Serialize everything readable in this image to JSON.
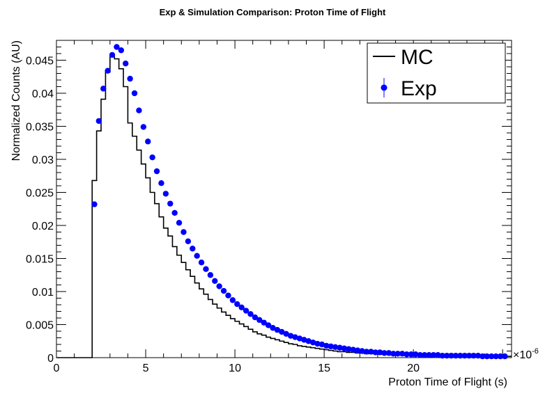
{
  "chart_data": {
    "type": "line",
    "title": "Exp & Simulation Comparison: Proton Time of Flight",
    "xlabel": "Proton Time of Flight (s)",
    "ylabel": "Normalized Counts (AU)",
    "x_exponent_label": "×10",
    "x_exponent_power": "-6",
    "xlim": [
      0,
      25.5
    ],
    "ylim": [
      0,
      0.048
    ],
    "x_ticks": [
      0,
      5,
      10,
      15,
      20
    ],
    "y_ticks": [
      "0",
      "0.005",
      "0.01",
      "0.015",
      "0.02",
      "0.025",
      "0.03",
      "0.035",
      "0.04",
      "0.045"
    ],
    "y_tick_values": [
      0,
      0.005,
      0.01,
      0.015,
      0.02,
      0.025,
      0.03,
      0.035,
      0.04,
      0.045
    ],
    "legend": {
      "position": "top-right",
      "entries": [
        "MC",
        "Exp"
      ]
    },
    "series": [
      {
        "name": "MC",
        "style": "step",
        "color": "#000000",
        "bin_width": 0.25,
        "bin_start": 0,
        "values": [
          0,
          0,
          0,
          0,
          0,
          0,
          0,
          0,
          0.0268,
          0.0343,
          0.0391,
          0.0432,
          0.0455,
          0.0452,
          0.0437,
          0.041,
          0.0355,
          0.0335,
          0.0314,
          0.0293,
          0.0272,
          0.025,
          0.0233,
          0.0213,
          0.0196,
          0.0184,
          0.0168,
          0.0155,
          0.0144,
          0.0133,
          0.0123,
          0.0113,
          0.0104,
          0.0096,
          0.0088,
          0.0081,
          0.0075,
          0.0069,
          0.0064,
          0.0059,
          0.0055,
          0.0051,
          0.0047,
          0.0043,
          0.0039,
          0.0036,
          0.0034,
          0.0031,
          0.0029,
          0.0027,
          0.0025,
          0.0023,
          0.0021,
          0.002,
          0.0018,
          0.0017,
          0.0016,
          0.0015,
          0.0014,
          0.0013,
          0.0012,
          0.0011,
          0.001,
          0.0009,
          0.0009,
          0.0008,
          0.0008,
          0.0007,
          0.0007,
          0.0006,
          0.0006,
          0.0006,
          0.0005,
          0.0005,
          0.0005,
          0.0004,
          0.0004,
          0.0004,
          0.0004,
          0.0003,
          0.0003,
          0.0003,
          0.0003,
          0.0003,
          0.0003,
          0.0003,
          0.0002,
          0.0002,
          0.0002,
          0.0002,
          0.0002,
          0.0002,
          0.0002,
          0.0002,
          0.0002,
          0.0002,
          0.0002,
          0.0002,
          0.0002,
          0.0002,
          0.0002,
          0.0002
        ]
      },
      {
        "name": "Exp",
        "style": "markers",
        "color": "#0000ff",
        "x": [
          2.125,
          2.375,
          2.625,
          2.875,
          3.125,
          3.375,
          3.625,
          3.875,
          4.125,
          4.375,
          4.625,
          4.875,
          5.125,
          5.375,
          5.625,
          5.875,
          6.125,
          6.375,
          6.625,
          6.875,
          7.125,
          7.375,
          7.625,
          7.875,
          8.125,
          8.375,
          8.625,
          8.875,
          9.125,
          9.375,
          9.625,
          9.875,
          10.125,
          10.375,
          10.625,
          10.875,
          11.125,
          11.375,
          11.625,
          11.875,
          12.125,
          12.375,
          12.625,
          12.875,
          13.125,
          13.375,
          13.625,
          13.875,
          14.125,
          14.375,
          14.625,
          14.875,
          15.125,
          15.375,
          15.625,
          15.875,
          16.125,
          16.375,
          16.625,
          16.875,
          17.125,
          17.375,
          17.625,
          17.875,
          18.125,
          18.375,
          18.625,
          18.875,
          19.125,
          19.375,
          19.625,
          19.875,
          20.125,
          20.375,
          20.625,
          20.875,
          21.125,
          21.375,
          21.625,
          21.875,
          22.125,
          22.375,
          22.625,
          22.875,
          23.125,
          23.375,
          23.625,
          23.875,
          24.125,
          24.375,
          24.625,
          24.875,
          25.125
        ],
        "values": [
          0.0232,
          0.0358,
          0.0407,
          0.0434,
          0.0458,
          0.047,
          0.0465,
          0.0445,
          0.0422,
          0.04,
          0.0374,
          0.0349,
          0.0327,
          0.0303,
          0.0282,
          0.0264,
          0.0248,
          0.0233,
          0.0219,
          0.0204,
          0.019,
          0.0176,
          0.0165,
          0.0154,
          0.0144,
          0.0134,
          0.0125,
          0.0116,
          0.0108,
          0.0101,
          0.0094,
          0.0087,
          0.0081,
          0.0076,
          0.0071,
          0.0066,
          0.0061,
          0.0057,
          0.0053,
          0.0049,
          0.0045,
          0.0042,
          0.0039,
          0.0036,
          0.0033,
          0.0031,
          0.0029,
          0.0027,
          0.0025,
          0.0023,
          0.0021,
          0.002,
          0.0018,
          0.0017,
          0.0016,
          0.0015,
          0.0014,
          0.0013,
          0.0012,
          0.0011,
          0.001,
          0.0009,
          0.0009,
          0.0008,
          0.0008,
          0.0007,
          0.0007,
          0.0006,
          0.0006,
          0.0006,
          0.0005,
          0.0005,
          0.0005,
          0.0004,
          0.0004,
          0.0004,
          0.0004,
          0.0004,
          0.0003,
          0.0003,
          0.0003,
          0.0003,
          0.0003,
          0.0003,
          0.0003,
          0.0003,
          0.0003,
          0.0002,
          0.0002,
          0.0002,
          0.0002,
          0.0002,
          0.0002
        ]
      }
    ]
  }
}
